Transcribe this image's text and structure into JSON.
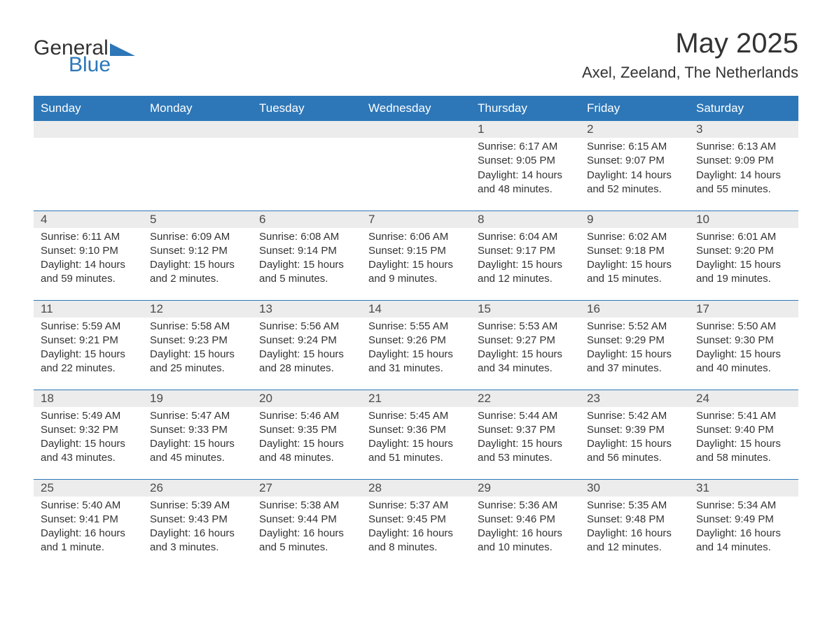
{
  "brand": {
    "word1": "General",
    "word2": "Blue",
    "accent_color": "#2d77b8"
  },
  "header": {
    "title": "May 2025",
    "subtitle": "Axel, Zeeland, The Netherlands"
  },
  "columns": [
    "Sunday",
    "Monday",
    "Tuesday",
    "Wednesday",
    "Thursday",
    "Friday",
    "Saturday"
  ],
  "labels": {
    "sunrise": "Sunrise",
    "sunset": "Sunset",
    "daylight": "Daylight"
  },
  "weeks": [
    [
      null,
      null,
      null,
      null,
      {
        "n": "1",
        "sunrise": "6:17 AM",
        "sunset": "9:05 PM",
        "daylight": "14 hours and 48 minutes."
      },
      {
        "n": "2",
        "sunrise": "6:15 AM",
        "sunset": "9:07 PM",
        "daylight": "14 hours and 52 minutes."
      },
      {
        "n": "3",
        "sunrise": "6:13 AM",
        "sunset": "9:09 PM",
        "daylight": "14 hours and 55 minutes."
      }
    ],
    [
      {
        "n": "4",
        "sunrise": "6:11 AM",
        "sunset": "9:10 PM",
        "daylight": "14 hours and 59 minutes."
      },
      {
        "n": "5",
        "sunrise": "6:09 AM",
        "sunset": "9:12 PM",
        "daylight": "15 hours and 2 minutes."
      },
      {
        "n": "6",
        "sunrise": "6:08 AM",
        "sunset": "9:14 PM",
        "daylight": "15 hours and 5 minutes."
      },
      {
        "n": "7",
        "sunrise": "6:06 AM",
        "sunset": "9:15 PM",
        "daylight": "15 hours and 9 minutes."
      },
      {
        "n": "8",
        "sunrise": "6:04 AM",
        "sunset": "9:17 PM",
        "daylight": "15 hours and 12 minutes."
      },
      {
        "n": "9",
        "sunrise": "6:02 AM",
        "sunset": "9:18 PM",
        "daylight": "15 hours and 15 minutes."
      },
      {
        "n": "10",
        "sunrise": "6:01 AM",
        "sunset": "9:20 PM",
        "daylight": "15 hours and 19 minutes."
      }
    ],
    [
      {
        "n": "11",
        "sunrise": "5:59 AM",
        "sunset": "9:21 PM",
        "daylight": "15 hours and 22 minutes."
      },
      {
        "n": "12",
        "sunrise": "5:58 AM",
        "sunset": "9:23 PM",
        "daylight": "15 hours and 25 minutes."
      },
      {
        "n": "13",
        "sunrise": "5:56 AM",
        "sunset": "9:24 PM",
        "daylight": "15 hours and 28 minutes."
      },
      {
        "n": "14",
        "sunrise": "5:55 AM",
        "sunset": "9:26 PM",
        "daylight": "15 hours and 31 minutes."
      },
      {
        "n": "15",
        "sunrise": "5:53 AM",
        "sunset": "9:27 PM",
        "daylight": "15 hours and 34 minutes."
      },
      {
        "n": "16",
        "sunrise": "5:52 AM",
        "sunset": "9:29 PM",
        "daylight": "15 hours and 37 minutes."
      },
      {
        "n": "17",
        "sunrise": "5:50 AM",
        "sunset": "9:30 PM",
        "daylight": "15 hours and 40 minutes."
      }
    ],
    [
      {
        "n": "18",
        "sunrise": "5:49 AM",
        "sunset": "9:32 PM",
        "daylight": "15 hours and 43 minutes."
      },
      {
        "n": "19",
        "sunrise": "5:47 AM",
        "sunset": "9:33 PM",
        "daylight": "15 hours and 45 minutes."
      },
      {
        "n": "20",
        "sunrise": "5:46 AM",
        "sunset": "9:35 PM",
        "daylight": "15 hours and 48 minutes."
      },
      {
        "n": "21",
        "sunrise": "5:45 AM",
        "sunset": "9:36 PM",
        "daylight": "15 hours and 51 minutes."
      },
      {
        "n": "22",
        "sunrise": "5:44 AM",
        "sunset": "9:37 PM",
        "daylight": "15 hours and 53 minutes."
      },
      {
        "n": "23",
        "sunrise": "5:42 AM",
        "sunset": "9:39 PM",
        "daylight": "15 hours and 56 minutes."
      },
      {
        "n": "24",
        "sunrise": "5:41 AM",
        "sunset": "9:40 PM",
        "daylight": "15 hours and 58 minutes."
      }
    ],
    [
      {
        "n": "25",
        "sunrise": "5:40 AM",
        "sunset": "9:41 PM",
        "daylight": "16 hours and 1 minute."
      },
      {
        "n": "26",
        "sunrise": "5:39 AM",
        "sunset": "9:43 PM",
        "daylight": "16 hours and 3 minutes."
      },
      {
        "n": "27",
        "sunrise": "5:38 AM",
        "sunset": "9:44 PM",
        "daylight": "16 hours and 5 minutes."
      },
      {
        "n": "28",
        "sunrise": "5:37 AM",
        "sunset": "9:45 PM",
        "daylight": "16 hours and 8 minutes."
      },
      {
        "n": "29",
        "sunrise": "5:36 AM",
        "sunset": "9:46 PM",
        "daylight": "16 hours and 10 minutes."
      },
      {
        "n": "30",
        "sunrise": "5:35 AM",
        "sunset": "9:48 PM",
        "daylight": "16 hours and 12 minutes."
      },
      {
        "n": "31",
        "sunrise": "5:34 AM",
        "sunset": "9:49 PM",
        "daylight": "16 hours and 14 minutes."
      }
    ]
  ],
  "styling": {
    "header_bg": "#2d77b8",
    "header_text": "#ffffff",
    "day_label_bg": "#ececec",
    "body_text": "#333333",
    "page_bg": "#ffffff",
    "title_fontsize": 40,
    "subtitle_fontsize": 22,
    "th_fontsize": 17,
    "body_fontsize": 15
  }
}
